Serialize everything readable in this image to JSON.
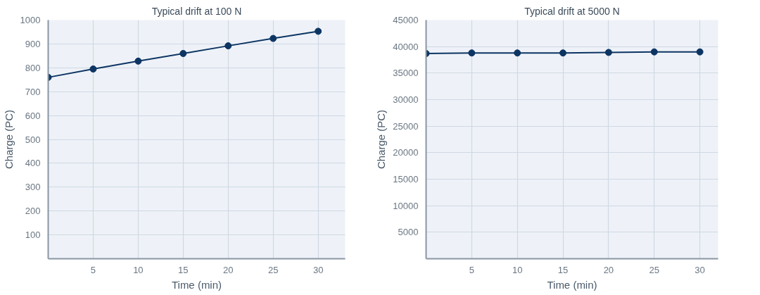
{
  "chart_data": [
    {
      "type": "line",
      "title": "Typical drift at 100 N",
      "xlabel": "Time (min)",
      "ylabel": "Charge (PC)",
      "x": [
        0,
        5,
        10,
        15,
        20,
        25,
        30
      ],
      "series": [
        {
          "color": "#0d3563",
          "values": [
            760,
            795,
            828,
            860,
            892,
            923,
            953
          ]
        }
      ],
      "xlim": [
        0,
        33
      ],
      "xticks": [
        5,
        10,
        15,
        20,
        25,
        30
      ],
      "ylim": [
        0,
        1000
      ],
      "yticks": [
        100,
        200,
        300,
        400,
        500,
        600,
        700,
        800,
        900,
        1000
      ],
      "grid": true,
      "marker": "circle",
      "line_style": "solid"
    },
    {
      "type": "line",
      "title": "Typical drift at 5000 N",
      "xlabel": "Time (min)",
      "ylabel": "Charge (PC)",
      "x": [
        0,
        5,
        10,
        15,
        20,
        25,
        30
      ],
      "series": [
        {
          "color": "#0d3563",
          "values": [
            38700,
            38800,
            38800,
            38800,
            38900,
            39000,
            39000
          ]
        }
      ],
      "xlim": [
        0,
        32
      ],
      "xticks": [
        5,
        10,
        15,
        20,
        25,
        30
      ],
      "ylim": [
        0,
        45000
      ],
      "yticks": [
        5000,
        10000,
        15000,
        20000,
        25000,
        30000,
        35000,
        40000,
        45000
      ],
      "grid": true,
      "marker": "circle",
      "line_style": "solid"
    }
  ]
}
